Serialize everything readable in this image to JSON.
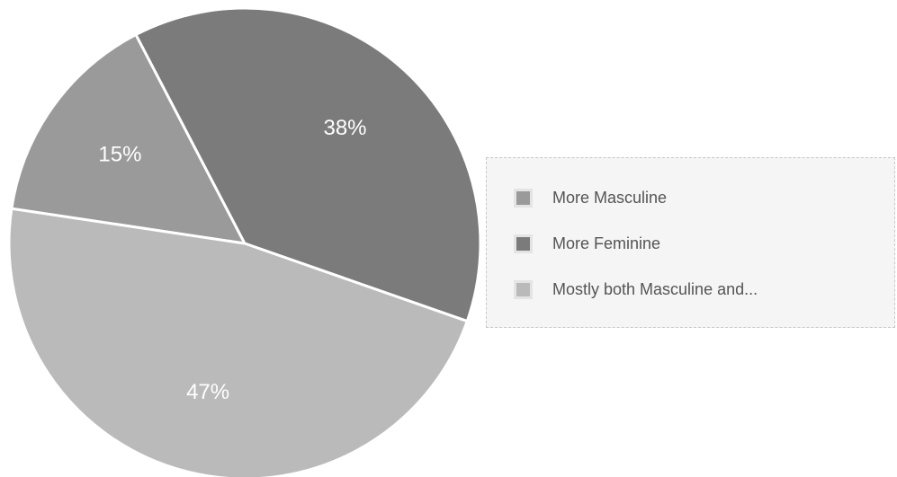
{
  "chart_data": {
    "type": "pie",
    "slices": [
      {
        "label": "More Masculine",
        "legend_label": "More Masculine",
        "value": 15,
        "display": "15%",
        "color": "#9a9a9a"
      },
      {
        "label": "More Feminine",
        "legend_label": "More Feminine",
        "value": 38,
        "display": "38%",
        "color": "#7b7b7b"
      },
      {
        "label": "Mostly both Masculine and...",
        "legend_label": "Mostly both Masculine and...",
        "value": 47,
        "display": "47%",
        "color": "#bababa"
      }
    ],
    "legend_position": "right",
    "slice_border_color": "#ffffff"
  }
}
